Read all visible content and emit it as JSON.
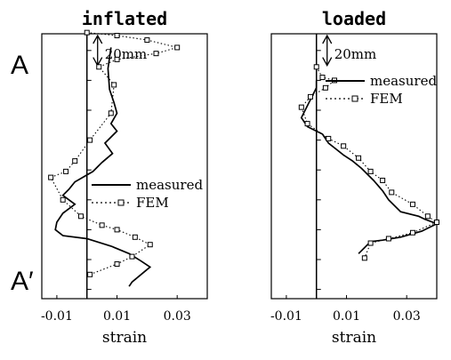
{
  "markers": {
    "start": "A",
    "end": "A′"
  },
  "chart_data": [
    {
      "type": "line",
      "title": "inflated",
      "xlabel": "strain",
      "ylabel": "",
      "xlim": [
        -0.015,
        0.04
      ],
      "ylim": [
        0,
        175
      ],
      "y_unit": "mm",
      "x_ticks": [
        -0.01,
        0.01,
        0.03
      ],
      "x_tick_labels": [
        "-0.01",
        "0.01",
        "0.03"
      ],
      "scale_bar_label": "20mm",
      "scale_bar_mm": 20,
      "legend": {
        "placement": "lower-right",
        "entries": [
          "measured",
          "FEM"
        ]
      },
      "series": [
        {
          "name": "measured",
          "style": "solid",
          "points": [
            [
              0.008,
              8
            ],
            [
              0.007,
              22
            ],
            [
              0.0075,
              36
            ],
            [
              0.009,
              45
            ],
            [
              0.01,
              52
            ],
            [
              0.008,
              59
            ],
            [
              0.01,
              64
            ],
            [
              0.006,
              72
            ],
            [
              0.0085,
              79
            ],
            [
              0.005,
              85
            ],
            [
              0.002,
              91
            ],
            [
              -0.004,
              98
            ],
            [
              -0.006,
              103
            ],
            [
              -0.008,
              107
            ],
            [
              -0.004,
              113
            ],
            [
              -0.008,
              119
            ],
            [
              -0.01,
              125
            ],
            [
              -0.0105,
              130
            ],
            [
              -0.008,
              134
            ],
            [
              0.0,
              136
            ],
            [
              0.008,
              141
            ],
            [
              0.014,
              146
            ],
            [
              0.018,
              151
            ],
            [
              0.021,
              155
            ],
            [
              0.018,
              160
            ],
            [
              0.015,
              165
            ],
            [
              0.014,
              168
            ]
          ]
        },
        {
          "name": "FEM",
          "style": "dotted",
          "marker": "square",
          "points": [
            [
              0.0,
              -2
            ],
            [
              0.01,
              0
            ],
            [
              0.02,
              3
            ],
            [
              0.03,
              8
            ],
            [
              0.023,
              12
            ],
            [
              0.01,
              16
            ],
            [
              0.004,
              21
            ],
            [
              0.009,
              33
            ],
            [
              0.008,
              52
            ],
            [
              0.001,
              70
            ],
            [
              -0.004,
              84
            ],
            [
              -0.007,
              91
            ],
            [
              -0.012,
              95
            ],
            [
              -0.008,
              110
            ],
            [
              -0.002,
              121
            ],
            [
              0.005,
              127
            ],
            [
              0.01,
              130
            ],
            [
              0.016,
              135
            ],
            [
              0.021,
              140
            ],
            [
              0.015,
              148
            ],
            [
              0.01,
              153
            ],
            [
              0.001,
              160
            ]
          ]
        }
      ]
    },
    {
      "type": "line",
      "title": "loaded",
      "xlabel": "strain",
      "ylabel": "",
      "xlim": [
        -0.015,
        0.04
      ],
      "ylim": [
        0,
        175
      ],
      "y_unit": "mm",
      "x_ticks": [
        -0.01,
        0.01,
        0.03
      ],
      "x_tick_labels": [
        "-0.01",
        "0.01",
        "0.03"
      ],
      "scale_bar_label": "20mm",
      "scale_bar_mm": 20,
      "legend": {
        "placement": "top-right",
        "entries": [
          "measured",
          "FEM"
        ]
      },
      "series": [
        {
          "name": "measured",
          "style": "solid",
          "points": [
            [
              0.0,
              30
            ],
            [
              0.0,
              35
            ],
            [
              -0.005,
              55
            ],
            [
              -0.003,
              61
            ],
            [
              0.002,
              66
            ],
            [
              0.004,
              72
            ],
            [
              0.009,
              80
            ],
            [
              0.012,
              84
            ],
            [
              0.015,
              89
            ],
            [
              0.019,
              97
            ],
            [
              0.022,
              104
            ],
            [
              0.024,
              110
            ],
            [
              0.028,
              118
            ],
            [
              0.034,
              121
            ],
            [
              0.036,
              123
            ],
            [
              0.04,
              126
            ],
            [
              0.035,
              131
            ],
            [
              0.028,
              135
            ],
            [
              0.022,
              137
            ],
            [
              0.018,
              138
            ],
            [
              0.016,
              142
            ],
            [
              0.014,
              146
            ]
          ]
        },
        {
          "name": "FEM",
          "style": "dotted",
          "marker": "square",
          "points": [
            [
              0.0,
              21
            ],
            [
              0.002,
              28
            ],
            [
              0.006,
              30
            ],
            [
              0.003,
              35
            ],
            [
              -0.002,
              41
            ],
            [
              -0.005,
              48
            ],
            [
              -0.003,
              59
            ],
            [
              0.004,
              69
            ],
            [
              0.009,
              74
            ],
            [
              0.014,
              82
            ],
            [
              0.018,
              91
            ],
            [
              0.022,
              97
            ],
            [
              0.025,
              105
            ],
            [
              0.032,
              113
            ],
            [
              0.037,
              121
            ],
            [
              0.04,
              125
            ],
            [
              0.032,
              132
            ],
            [
              0.024,
              136
            ],
            [
              0.018,
              139
            ],
            [
              0.016,
              149
            ]
          ]
        }
      ]
    }
  ]
}
